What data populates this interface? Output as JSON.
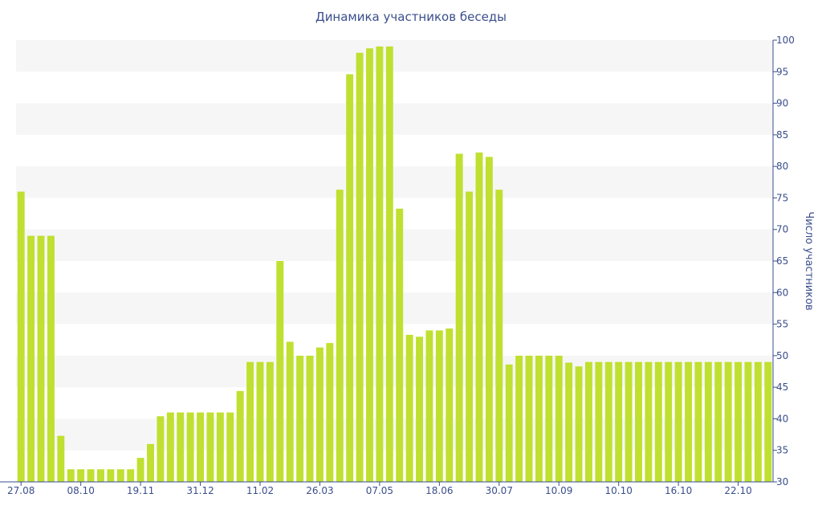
{
  "chart_data": {
    "type": "bar",
    "title": "Динамика участников беседы",
    "xlabel": "",
    "ylabel": "Число участников",
    "ylim": [
      30,
      100
    ],
    "yticks": [
      30,
      35,
      40,
      45,
      50,
      55,
      60,
      65,
      70,
      75,
      80,
      85,
      90,
      95,
      100
    ],
    "y_axis_side": "right",
    "grid": "alternating-bands",
    "bar_color": "#bfe030",
    "band_color": "#f6f6f6",
    "axis_text_color": "#3a4e8c",
    "x_tick_labels": [
      {
        "index": 0,
        "label": "27.08"
      },
      {
        "index": 6,
        "label": "08.10"
      },
      {
        "index": 12,
        "label": "19.11"
      },
      {
        "index": 18,
        "label": "31.12"
      },
      {
        "index": 24,
        "label": "11.02"
      },
      {
        "index": 30,
        "label": "26.03"
      },
      {
        "index": 36,
        "label": "07.05"
      },
      {
        "index": 42,
        "label": "18.06"
      },
      {
        "index": 48,
        "label": "30.07"
      },
      {
        "index": 54,
        "label": "10.09"
      },
      {
        "index": 60,
        "label": "10.10"
      },
      {
        "index": 66,
        "label": "16.10"
      },
      {
        "index": 72,
        "label": "22.10"
      }
    ],
    "values": [
      76,
      69,
      69,
      69,
      37.3,
      32,
      32,
      32,
      32,
      32,
      32,
      32,
      33.8,
      36,
      40.4,
      41,
      41,
      41,
      41,
      41,
      41,
      41,
      44.4,
      49,
      49,
      49,
      65,
      52.2,
      50,
      50,
      51.3,
      52,
      76.3,
      94.6,
      98,
      98.7,
      99,
      99,
      73.3,
      53.3,
      53,
      54,
      54,
      54.3,
      82,
      76,
      82.2,
      81.5,
      76.3,
      48.6,
      50,
      50,
      50,
      50,
      50,
      48.9,
      48.3,
      49,
      49,
      49,
      49,
      49,
      49,
      49,
      49,
      49,
      49,
      49,
      49,
      49,
      49,
      49,
      49,
      49,
      49,
      49
    ]
  }
}
